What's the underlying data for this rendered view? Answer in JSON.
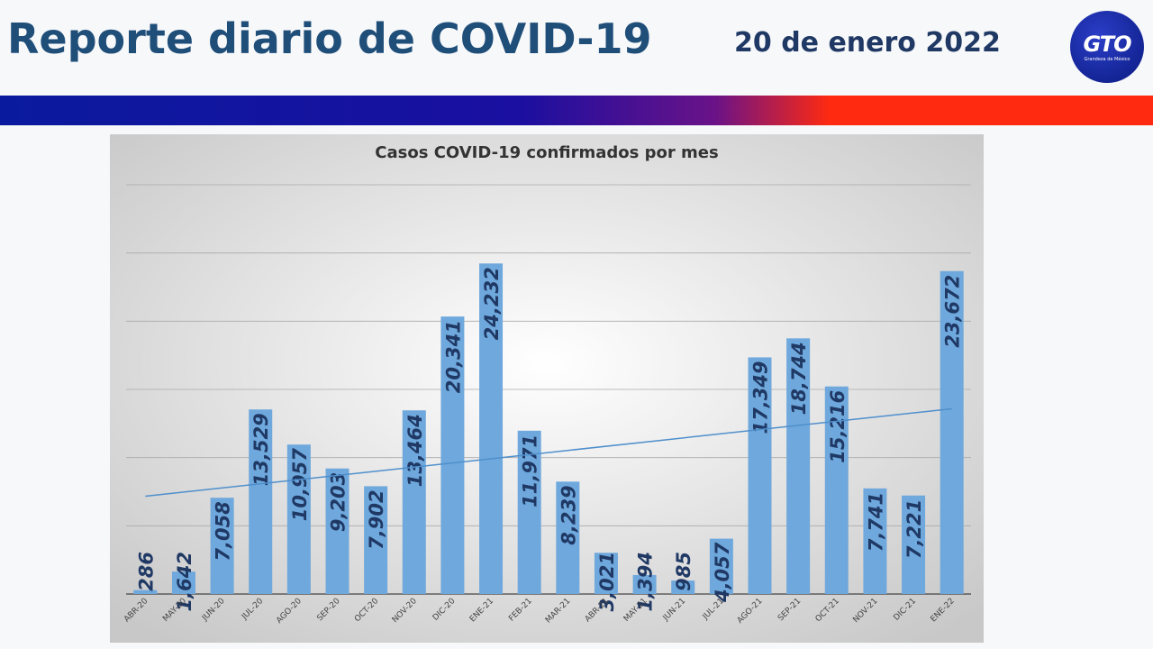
{
  "header": {
    "title": "Reporte diario de COVID-19",
    "date": "20 de enero 2022",
    "logo_text": "GTO",
    "logo_subtext": "Grandeza de México"
  },
  "chart_data": {
    "type": "bar",
    "title": "Casos COVID-19 confirmados por mes",
    "categories": [
      "ABR-20",
      "MAY-20",
      "JUN-20",
      "JUL-20",
      "AGO-20",
      "SEP-20",
      "OCT-20",
      "NOV-20",
      "DIC-20",
      "ENE-21",
      "FEB-21",
      "MAR-21",
      "ABR-21",
      "MAY-21",
      "JUN-21",
      "JUL-21",
      "AGO-21",
      "SEP-21",
      "OCT-21",
      "NOV-21",
      "DIC-21",
      "ENE-22"
    ],
    "values": [
      286,
      1642,
      7058,
      13529,
      10957,
      9203,
      7902,
      13464,
      20341,
      24232,
      11971,
      8239,
      3021,
      1394,
      985,
      4057,
      17349,
      18744,
      15216,
      7741,
      7221,
      23672
    ],
    "value_labels": [
      "286",
      "1,642",
      "7,058",
      "13,529",
      "10,957",
      "9,203",
      "7,902",
      "13,464",
      "20,341",
      "24,232",
      "11,971",
      "8,239",
      "3,021",
      "1,394",
      "985",
      "4,057",
      "17,349",
      "18,744",
      "15,216",
      "7,741",
      "7,221",
      "23,672"
    ],
    "color": "#6fa8dc",
    "trendline_color": "#4f8fcc",
    "trendline": true,
    "ylim": [
      0,
      30000
    ],
    "yticks": [
      0,
      5000,
      10000,
      15000,
      20000,
      25000,
      30000
    ],
    "grid": true
  }
}
